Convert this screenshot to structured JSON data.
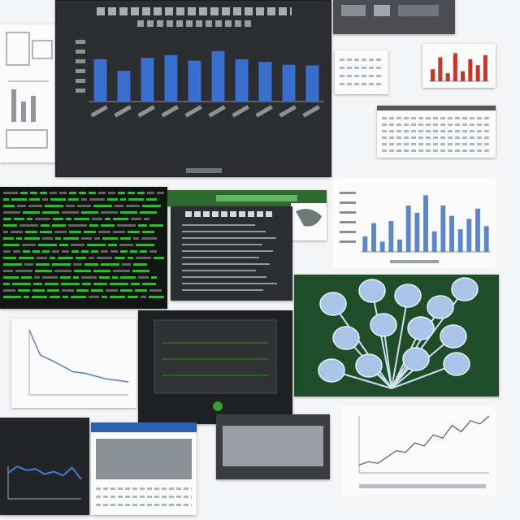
{
  "colors": {
    "background": "#f4f5f6",
    "dark_panel": "#2c2d30",
    "bar_blue": "#3b6fcf",
    "light_bar_blue": "#5b86c8",
    "terminal_green": "#3fd13f",
    "red_bar": "#c0392b",
    "photo_green": "#2d6b3a",
    "bulb_blue": "#a9c4e6"
  },
  "charts": {
    "main_bar": {
      "type": "bar",
      "values": [
        62,
        45,
        64,
        68,
        60,
        74,
        62,
        58,
        54,
        53
      ],
      "ylim": [
        0,
        100
      ]
    },
    "secondary_bar": {
      "type": "bar",
      "values": [
        15,
        28,
        10,
        30,
        12,
        45,
        38,
        55,
        20,
        45,
        35,
        22,
        32,
        42,
        25
      ],
      "ylim": [
        0,
        60
      ]
    },
    "mini_red_bar": {
      "type": "bar",
      "values": [
        30,
        60,
        20,
        70,
        25,
        55,
        40,
        65
      ]
    },
    "line_decline": {
      "type": "line",
      "values": [
        90,
        55,
        48,
        40,
        32,
        30,
        26,
        22,
        20,
        18
      ]
    },
    "line_rise": {
      "type": "line",
      "values": [
        10,
        14,
        12,
        20,
        28,
        26,
        38,
        34,
        48,
        44,
        60,
        52,
        66,
        62,
        72
      ]
    },
    "line_blue_dark": {
      "type": "line",
      "values": [
        40,
        50,
        44,
        46,
        38,
        42,
        36,
        48,
        30
      ]
    }
  }
}
